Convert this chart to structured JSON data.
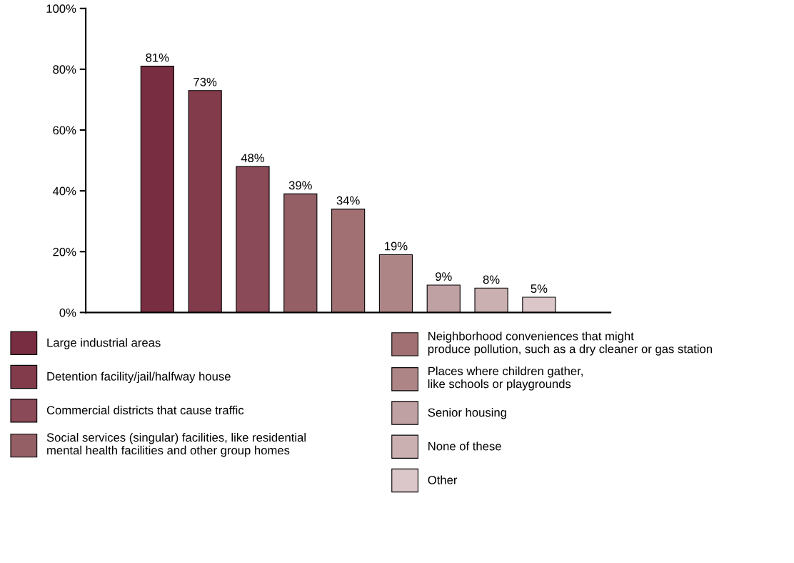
{
  "chart_data": {
    "type": "bar",
    "categories": [
      null,
      null,
      null,
      null,
      null,
      null,
      null,
      null,
      null,
      null,
      null
    ],
    "series": [
      {
        "name": "Large industrial areas",
        "color": "#782d40",
        "values": [
          null,
          81,
          null,
          null,
          null,
          null,
          null,
          null,
          null,
          null,
          null
        ],
        "value_labels": [
          null,
          "81%",
          null,
          null,
          null,
          null,
          null,
          null,
          null,
          null,
          null
        ]
      },
      {
        "name": "Detention facility/jail/halfway house",
        "color": "#823b4b",
        "values": [
          null,
          null,
          73,
          null,
          null,
          null,
          null,
          null,
          null,
          null,
          null
        ],
        "value_labels": [
          null,
          null,
          "73%",
          null,
          null,
          null,
          null,
          null,
          null,
          null,
          null
        ]
      },
      {
        "name": "Commercial districts that cause traffic",
        "color": "#8b4a57",
        "values": [
          null,
          null,
          null,
          48,
          null,
          null,
          null,
          null,
          null,
          null,
          null
        ],
        "value_labels": [
          null,
          null,
          null,
          "48%",
          null,
          null,
          null,
          null,
          null,
          null,
          null
        ]
      },
      {
        "name": "Social services (singular) facilities, like residential\nmental health facilities and other group homes",
        "color": "#946065",
        "values": [
          null,
          null,
          null,
          null,
          39,
          null,
          null,
          null,
          null,
          null,
          null
        ],
        "value_labels": [
          null,
          null,
          null,
          null,
          "39%",
          null,
          null,
          null,
          null,
          null,
          null
        ]
      },
      {
        "name": "Neighborhood conveniences that might\nproduce pollution, such as a dry cleaner or gas station",
        "color": "#a07072",
        "values": [
          null,
          null,
          null,
          null,
          null,
          34,
          null,
          null,
          null,
          null,
          null
        ],
        "value_labels": [
          null,
          null,
          null,
          null,
          null,
          "34%",
          null,
          null,
          null,
          null,
          null
        ]
      },
      {
        "name": "Places where children gather,\nlike schools or playgrounds",
        "color": "#ae8587",
        "values": [
          null,
          null,
          null,
          null,
          null,
          null,
          19,
          null,
          null,
          null,
          null
        ],
        "value_labels": [
          null,
          null,
          null,
          null,
          null,
          null,
          "19%",
          null,
          null,
          null,
          null
        ]
      },
      {
        "name": "Senior housing",
        "color": "#bfa0a3",
        "values": [
          null,
          null,
          null,
          null,
          null,
          null,
          null,
          9,
          null,
          null,
          null
        ],
        "value_labels": [
          null,
          null,
          null,
          null,
          null,
          null,
          null,
          "9%",
          null,
          null,
          null
        ]
      },
      {
        "name": "None of these",
        "color": "#cbb0b2",
        "values": [
          null,
          null,
          null,
          null,
          null,
          null,
          null,
          null,
          8,
          null,
          null
        ],
        "value_labels": [
          null,
          null,
          null,
          null,
          null,
          null,
          null,
          null,
          "8%",
          null,
          null
        ]
      },
      {
        "name": "Other",
        "color": "#dbc6c9",
        "values": [
          null,
          null,
          null,
          null,
          null,
          null,
          null,
          null,
          null,
          5,
          null
        ],
        "value_labels": [
          null,
          null,
          null,
          null,
          null,
          null,
          null,
          null,
          null,
          "5%",
          null
        ]
      }
    ],
    "ylim": [
      0,
      100
    ],
    "yticks": [
      {
        "value": 0,
        "label": "0%"
      },
      {
        "value": 20,
        "label": "20%"
      },
      {
        "value": 40,
        "label": "40%"
      },
      {
        "value": 60,
        "label": "60%"
      },
      {
        "value": 80,
        "label": "80%"
      },
      {
        "value": 100,
        "label": "100%"
      }
    ],
    "tick_labels": "y",
    "grid": false,
    "legend": "bottom"
  }
}
